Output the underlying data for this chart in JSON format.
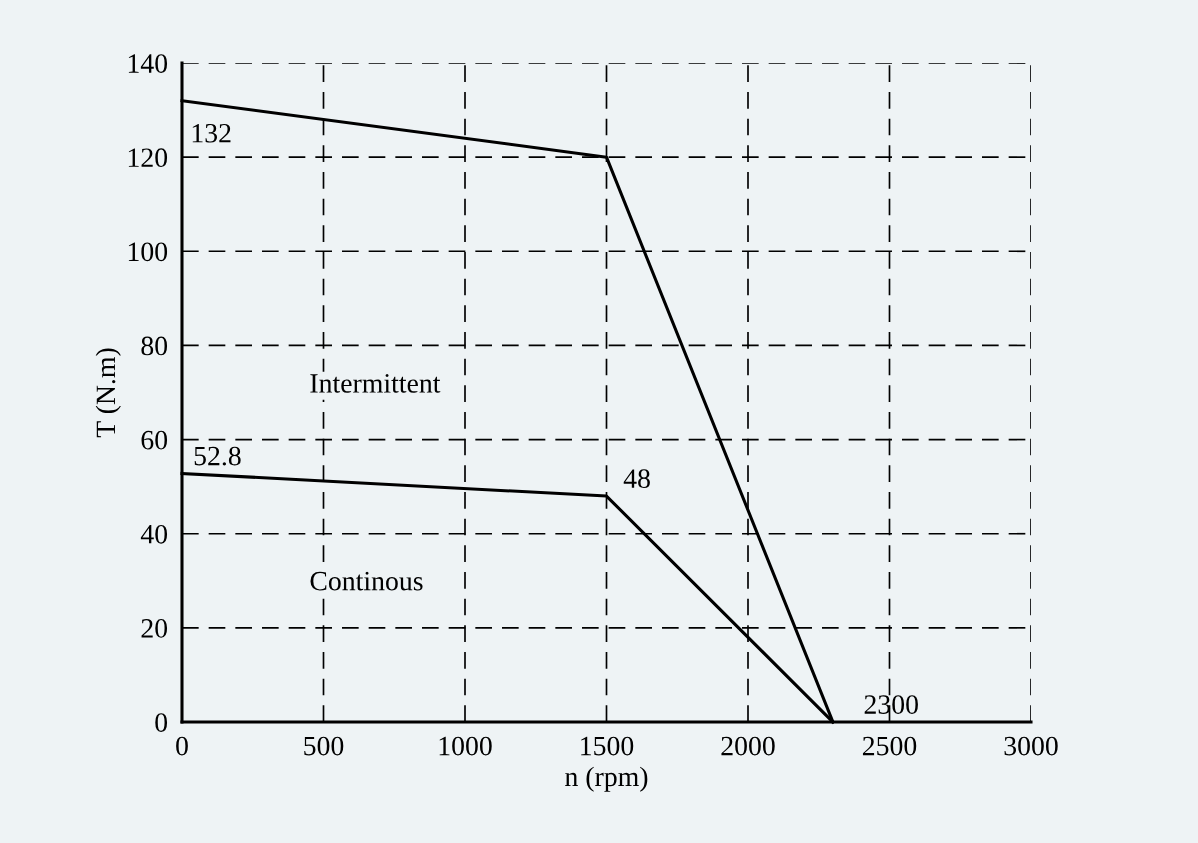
{
  "chart_data": {
    "type": "line",
    "xlabel": "n (rpm)",
    "ylabel": "T (N.m)",
    "x": [
      0,
      1500,
      2300
    ],
    "series": [
      {
        "color": "#000000",
        "values": [
          132,
          120,
          0
        ],
        "value_labels": [
          "132",
          null,
          null
        ]
      },
      {
        "color": "#000000",
        "values": [
          52.8,
          48,
          0
        ],
        "value_labels": [
          "52.8",
          "48",
          null
        ]
      }
    ],
    "annotations": [
      "Intermittent",
      "Continous",
      {
        "text": "2300",
        "x": 2300,
        "y": 0
      }
    ],
    "xlim": [
      0,
      3000
    ],
    "ylim": [
      0,
      140
    ],
    "xticks": [
      0,
      500,
      1000,
      1500,
      2000,
      2500,
      3000
    ],
    "yticks": [
      0,
      20,
      40,
      60,
      80,
      100,
      120,
      140
    ],
    "grid": true,
    "line_style": "solid",
    "marker": "none"
  }
}
